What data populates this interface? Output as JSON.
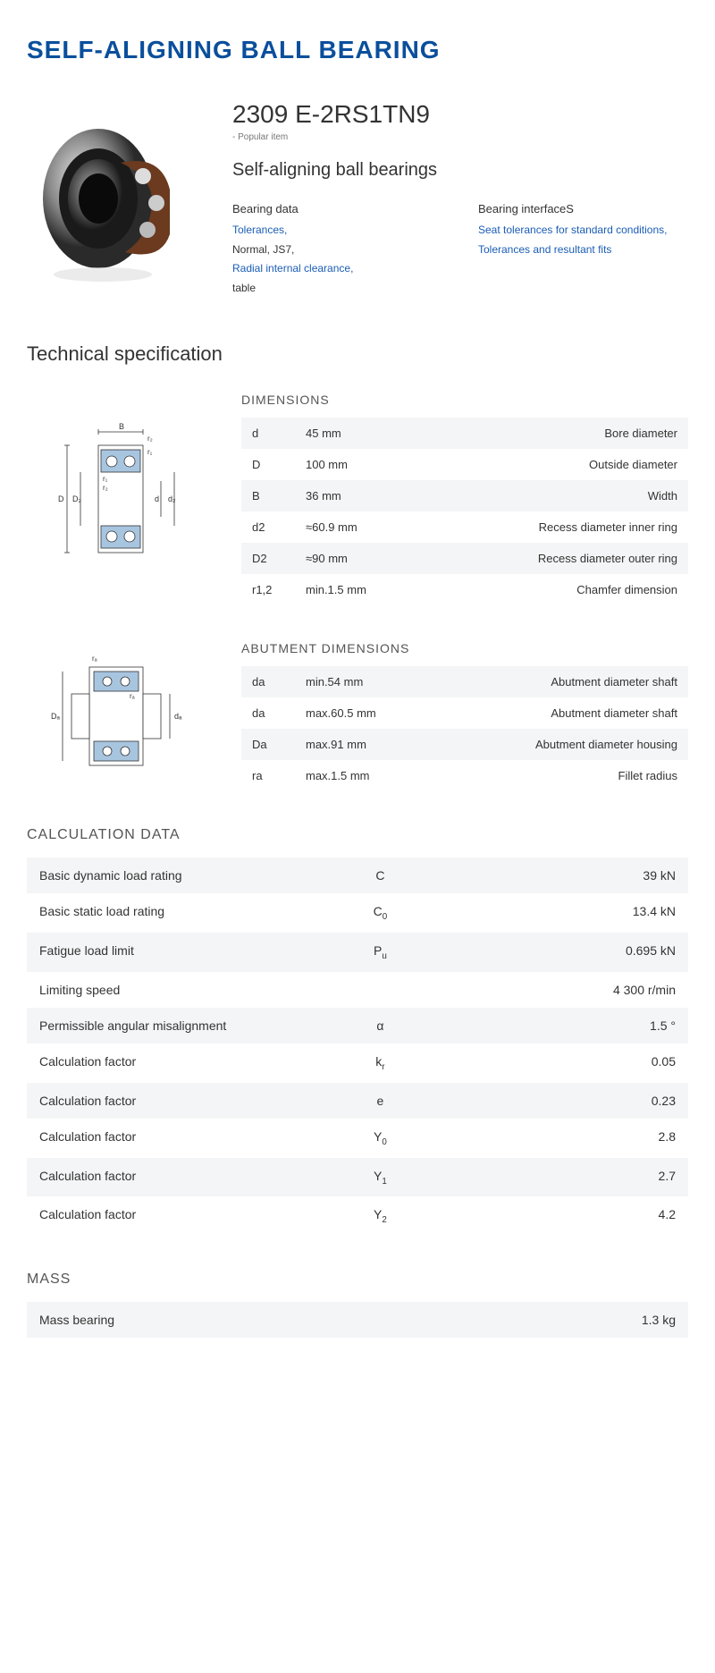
{
  "title": "SELF-ALIGNING BALL BEARING",
  "product": {
    "code": "2309 E-2RS1TN9",
    "popular": "- Popular item",
    "subtitle": "Self-aligning ball bearings"
  },
  "bearingData": {
    "head": "Bearing data",
    "lines": [
      {
        "text": "Tolerances,",
        "link": true
      },
      {
        "text": "Normal, JS7,",
        "link": false
      },
      {
        "text": "Radial internal clearance,",
        "link": true
      },
      {
        "text": "table",
        "link": false
      }
    ]
  },
  "bearingInterface": {
    "head": "Bearing interfaceS",
    "lines": [
      {
        "text": "Seat tolerances for standard conditions,",
        "link": true
      },
      {
        "text": "Tolerances and resultant fits",
        "link": true
      }
    ]
  },
  "techSpecTitle": "Technical specification",
  "dimensions": {
    "title": "DIMENSIONS",
    "rows": [
      {
        "sym": "d",
        "val": "45  mm",
        "desc": "Bore diameter"
      },
      {
        "sym": "D",
        "val": "100  mm",
        "desc": "Outside diameter"
      },
      {
        "sym": "B",
        "val": "36  mm",
        "desc": "Width"
      },
      {
        "sym": "d2",
        "val": "≈60.9 mm",
        "desc": "Recess diameter inner ring"
      },
      {
        "sym": "D2",
        "val": "≈90 mm",
        "desc": "Recess diameter outer ring"
      },
      {
        "sym": "r1,2",
        "val": "min.1.5 mm",
        "desc": "Chamfer dimension"
      }
    ]
  },
  "abutment": {
    "title": "ABUTMENT DIMENSIONS",
    "rows": [
      {
        "sym": "da",
        "val": "min.54 mm",
        "desc": "Abutment diameter shaft"
      },
      {
        "sym": "da",
        "val": "max.60.5 mm",
        "desc": "Abutment diameter shaft"
      },
      {
        "sym": "Da",
        "val": "max.91 mm",
        "desc": "Abutment diameter housing"
      },
      {
        "sym": "ra",
        "val": "max.1.5 mm",
        "desc": "Fillet radius"
      }
    ]
  },
  "calc": {
    "title": "CALCULATION DATA",
    "rows": [
      {
        "label": "Basic dynamic load rating",
        "sym": "C",
        "val": "39  kN"
      },
      {
        "label": "Basic static load rating",
        "sym": "C<sub>0</sub>",
        "val": "13.4  kN"
      },
      {
        "label": "Fatigue load limit",
        "sym": "P<sub>u</sub>",
        "val": "0.695  kN"
      },
      {
        "label": "Limiting speed",
        "sym": "",
        "val": "4 300  r/min"
      },
      {
        "label": "Permissible angular misalignment",
        "sym": "α",
        "val": "1.5  °"
      },
      {
        "label": "Calculation factor",
        "sym": "k<sub>r</sub>",
        "val": "0.05"
      },
      {
        "label": "Calculation factor",
        "sym": "e",
        "val": "0.23"
      },
      {
        "label": "Calculation factor",
        "sym": "Y<sub>0</sub>",
        "val": "2.8"
      },
      {
        "label": "Calculation factor",
        "sym": "Y<sub>1</sub>",
        "val": "2.7"
      },
      {
        "label": "Calculation factor",
        "sym": "Y<sub>2</sub>",
        "val": "4.2"
      }
    ]
  },
  "mass": {
    "title": "MASS",
    "rows": [
      {
        "label": "Mass bearing",
        "sym": "",
        "val": "1.3  kg"
      }
    ]
  },
  "colors": {
    "brand": "#0a4f9c",
    "link": "#1a5db5",
    "rowAlt": "#f4f5f6",
    "diagram": "#7fa9d4"
  }
}
